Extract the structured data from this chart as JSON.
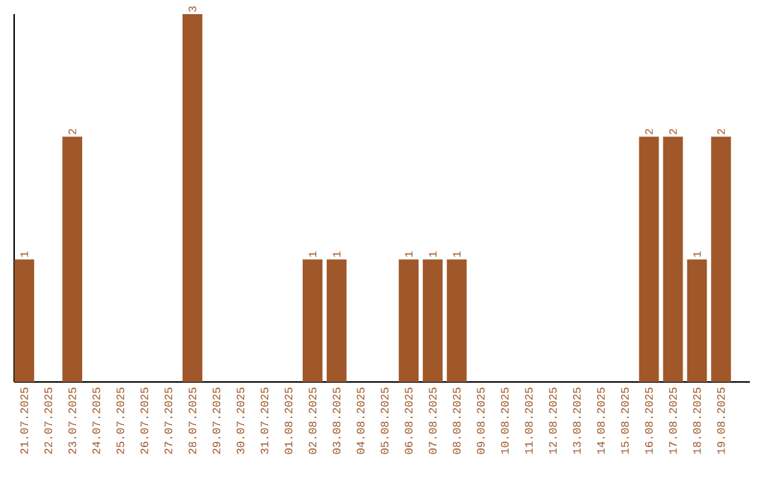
{
  "chart_data": {
    "type": "bar",
    "categories": [
      "21.07.2025",
      "22.07.2025",
      "23.07.2025",
      "24.07.2025",
      "25.07.2025",
      "26.07.2025",
      "27.07.2025",
      "28.07.2025",
      "29.07.2025",
      "30.07.2025",
      "31.07.2025",
      "01.08.2025",
      "02.08.2025",
      "03.08.2025",
      "04.08.2025",
      "05.08.2025",
      "06.08.2025",
      "07.08.2025",
      "08.08.2025",
      "09.08.2025",
      "10.08.2025",
      "11.08.2025",
      "12.08.2025",
      "13.08.2025",
      "14.08.2025",
      "15.08.2025",
      "16.08.2025",
      "17.08.2025",
      "18.08.2025",
      "19.08.2025"
    ],
    "values": [
      1,
      0,
      2,
      0,
      0,
      0,
      0,
      3,
      0,
      0,
      0,
      0,
      1,
      1,
      0,
      0,
      1,
      1,
      1,
      0,
      0,
      0,
      0,
      0,
      0,
      0,
      2,
      2,
      1,
      2
    ],
    "value_labels": [
      "1",
      null,
      "2",
      null,
      null,
      null,
      null,
      "3",
      null,
      null,
      null,
      null,
      "1",
      "1",
      null,
      null,
      "1",
      "1",
      "1",
      null,
      null,
      null,
      null,
      null,
      null,
      null,
      "2",
      "2",
      "1",
      "2"
    ],
    "color": "#a0572a"
  }
}
